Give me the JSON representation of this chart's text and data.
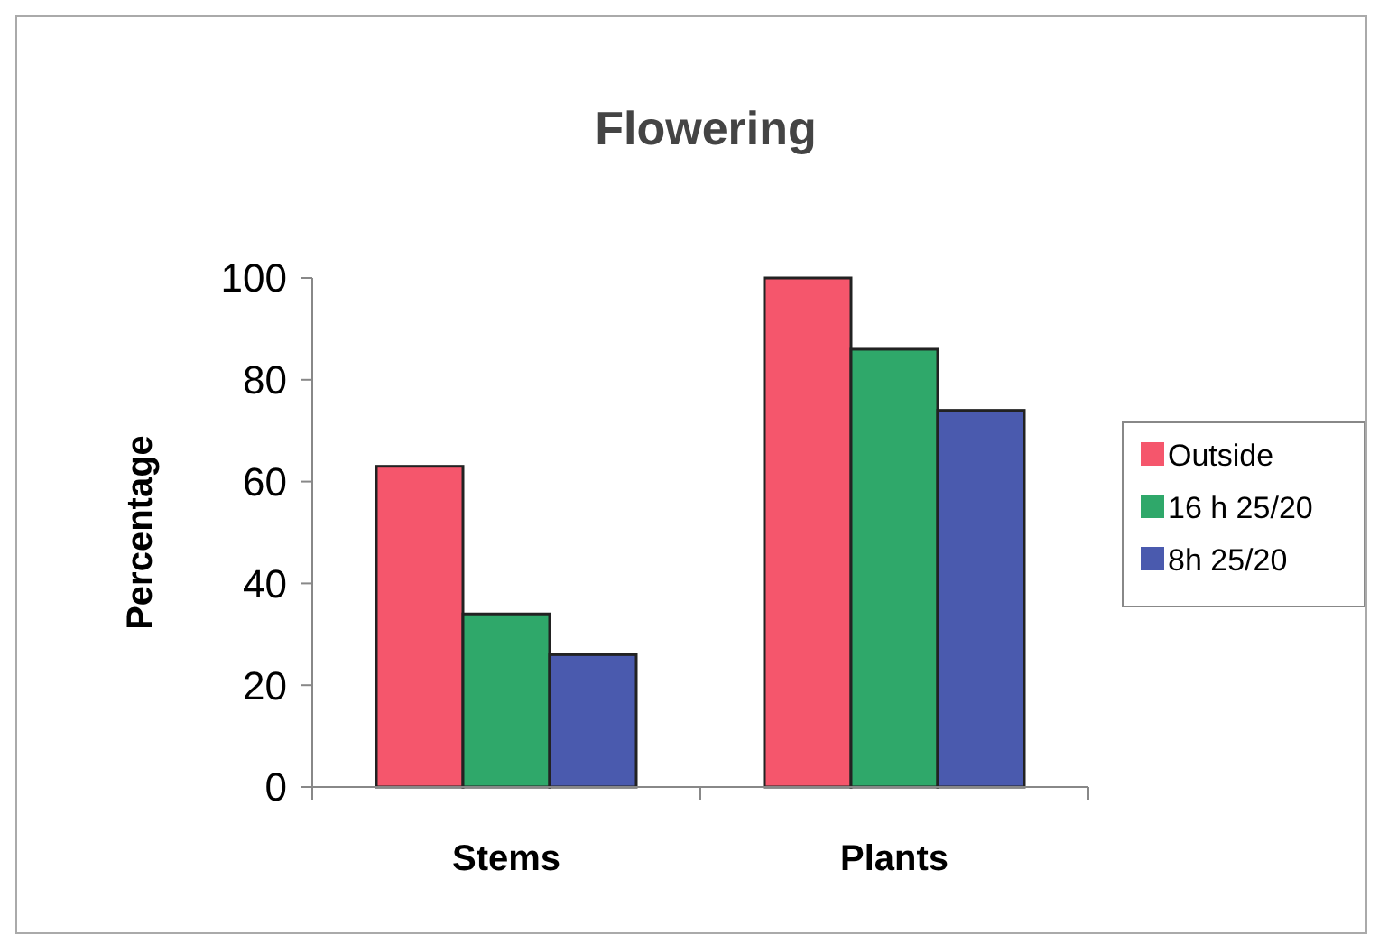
{
  "chart_data": {
    "type": "bar",
    "title": "Flowering",
    "ylabel": "Percentage",
    "categories": [
      "Stems",
      "Plants"
    ],
    "series": [
      {
        "name": "Outside",
        "color": "#f5566c",
        "values": [
          63,
          100
        ]
      },
      {
        "name": "16 h 25/20",
        "color": "#2fa86a",
        "values": [
          34,
          86
        ]
      },
      {
        "name": "8h 25/20",
        "color": "#4a5aae",
        "values": [
          26,
          74
        ]
      }
    ],
    "ylim": [
      0,
      100
    ],
    "yticks": [
      0,
      20,
      40,
      60,
      80,
      100
    ],
    "grid": false,
    "legend": "right"
  }
}
